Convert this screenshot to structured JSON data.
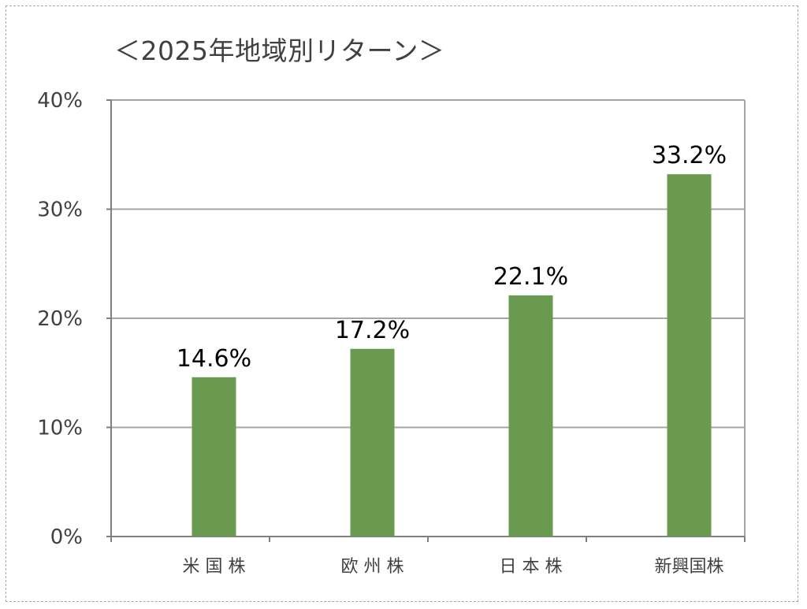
{
  "chart_data": {
    "type": "bar",
    "title": "＜2025年地域別リターン＞",
    "xlabel": "",
    "ylabel": "",
    "categories": [
      "米 国 株",
      "欧 州 株",
      "日 本 株",
      "新興国株"
    ],
    "series": [
      {
        "values": [
          14.6,
          17.2,
          22.1,
          33.2
        ],
        "data_labels": [
          "14.6%",
          "17.2%",
          "22.1%",
          "33.2%"
        ]
      }
    ],
    "ylim": [
      0,
      40
    ],
    "yticks": [
      0,
      10,
      20,
      30,
      40
    ],
    "ytick_labels": [
      "0%",
      "10%",
      "20%",
      "30%",
      "40%"
    ],
    "grid": true,
    "legend": "none",
    "colors": {
      "bar": "#6a9a4f",
      "grid": "#a6a6a6",
      "axis": "#7f7f7f",
      "text": "#404040"
    }
  }
}
